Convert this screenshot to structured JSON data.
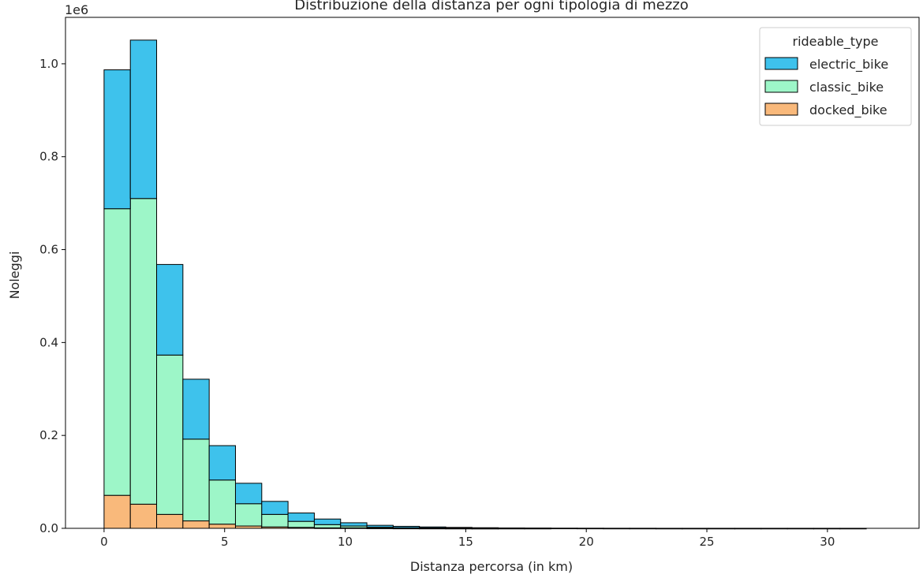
{
  "chart_data": {
    "type": "bar",
    "title": "Distribuzione della distanza per ogni tipologia di mezzo",
    "xlabel": "Distanza percorsa (in km)",
    "ylabel": "Noleggi",
    "y_offset_text": "1e6",
    "xlim": [
      -1.6,
      33.8
    ],
    "ylim": [
      0,
      1.1
    ],
    "x_ticks": [
      0,
      5,
      10,
      15,
      20,
      25,
      30
    ],
    "y_ticks": [
      "0.0",
      "0.2",
      "0.4",
      "0.6",
      "0.8",
      "1.0"
    ],
    "grid": false,
    "stacked": true,
    "bin_width": 1.09,
    "x_start": 0,
    "legend": {
      "title": "rideable_type",
      "placement": "top-right"
    },
    "series": [
      {
        "name": "docked_bike",
        "color": "#f9b97b",
        "values": [
          0.071,
          0.052,
          0.03,
          0.016,
          0.009,
          0.005,
          0.003,
          0.002,
          0.001,
          0.001,
          0.0005,
          0.0003,
          0.0002,
          0.0001,
          0.0001,
          0,
          0,
          0,
          0,
          0,
          0,
          0,
          0,
          0,
          0,
          0,
          0,
          0,
          0
        ]
      },
      {
        "name": "classic_bike",
        "color": "#9df6c8",
        "values": [
          0.617,
          0.658,
          0.343,
          0.176,
          0.095,
          0.048,
          0.027,
          0.013,
          0.007,
          0.004,
          0.002,
          0.001,
          0.0008,
          0.0004,
          0.0002,
          0.0001,
          0.0001,
          0,
          0,
          0,
          0,
          0,
          0,
          0,
          0,
          0,
          0,
          0,
          0
        ]
      },
      {
        "name": "electric_bike",
        "color": "#3ec2ec",
        "values": [
          0.299,
          0.341,
          0.195,
          0.129,
          0.074,
          0.044,
          0.028,
          0.018,
          0.012,
          0.007,
          0.004,
          0.003,
          0.002,
          0.0015,
          0.001,
          0.0007,
          0.0005,
          0.0004,
          0.0003,
          0.0002,
          0.0002,
          0.0001,
          0.0001,
          0.0001,
          0.0001,
          0.0001,
          0.0001,
          0.0001,
          0.0001
        ]
      }
    ],
    "legend_order": [
      "electric_bike",
      "classic_bike",
      "docked_bike"
    ]
  }
}
